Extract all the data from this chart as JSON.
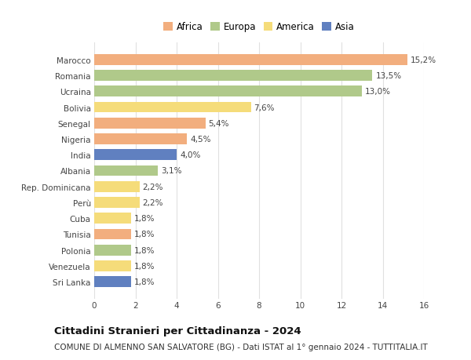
{
  "countries": [
    "Marocco",
    "Romania",
    "Ucraina",
    "Bolivia",
    "Senegal",
    "Nigeria",
    "India",
    "Albania",
    "Rep. Dominicana",
    "Perù",
    "Cuba",
    "Tunisia",
    "Polonia",
    "Venezuela",
    "Sri Lanka"
  ],
  "values": [
    15.2,
    13.5,
    13.0,
    7.6,
    5.4,
    4.5,
    4.0,
    3.1,
    2.2,
    2.2,
    1.8,
    1.8,
    1.8,
    1.8,
    1.8
  ],
  "labels": [
    "15,2%",
    "13,5%",
    "13,0%",
    "7,6%",
    "5,4%",
    "4,5%",
    "4,0%",
    "3,1%",
    "2,2%",
    "2,2%",
    "1,8%",
    "1,8%",
    "1,8%",
    "1,8%",
    "1,8%"
  ],
  "continents": [
    "Africa",
    "Europa",
    "Europa",
    "America",
    "Africa",
    "Africa",
    "Asia",
    "Europa",
    "America",
    "America",
    "America",
    "Africa",
    "Europa",
    "America",
    "Asia"
  ],
  "continent_colors": {
    "Africa": "#F2AE7E",
    "Europa": "#B0C98A",
    "America": "#F5DC7A",
    "Asia": "#6080C0"
  },
  "legend_order": [
    "Africa",
    "Europa",
    "America",
    "Asia"
  ],
  "xlim": [
    0,
    16
  ],
  "xticks": [
    0,
    2,
    4,
    6,
    8,
    10,
    12,
    14,
    16
  ],
  "title": "Cittadini Stranieri per Cittadinanza - 2024",
  "subtitle": "COMUNE DI ALMENNO SAN SALVATORE (BG) - Dati ISTAT al 1° gennaio 2024 - TUTTITALIA.IT",
  "background_color": "#ffffff",
  "grid_color": "#e0e0e0",
  "bar_height": 0.68,
  "title_fontsize": 9.5,
  "subtitle_fontsize": 7.5,
  "label_fontsize": 7.5,
  "tick_fontsize": 7.5,
  "legend_fontsize": 8.5
}
